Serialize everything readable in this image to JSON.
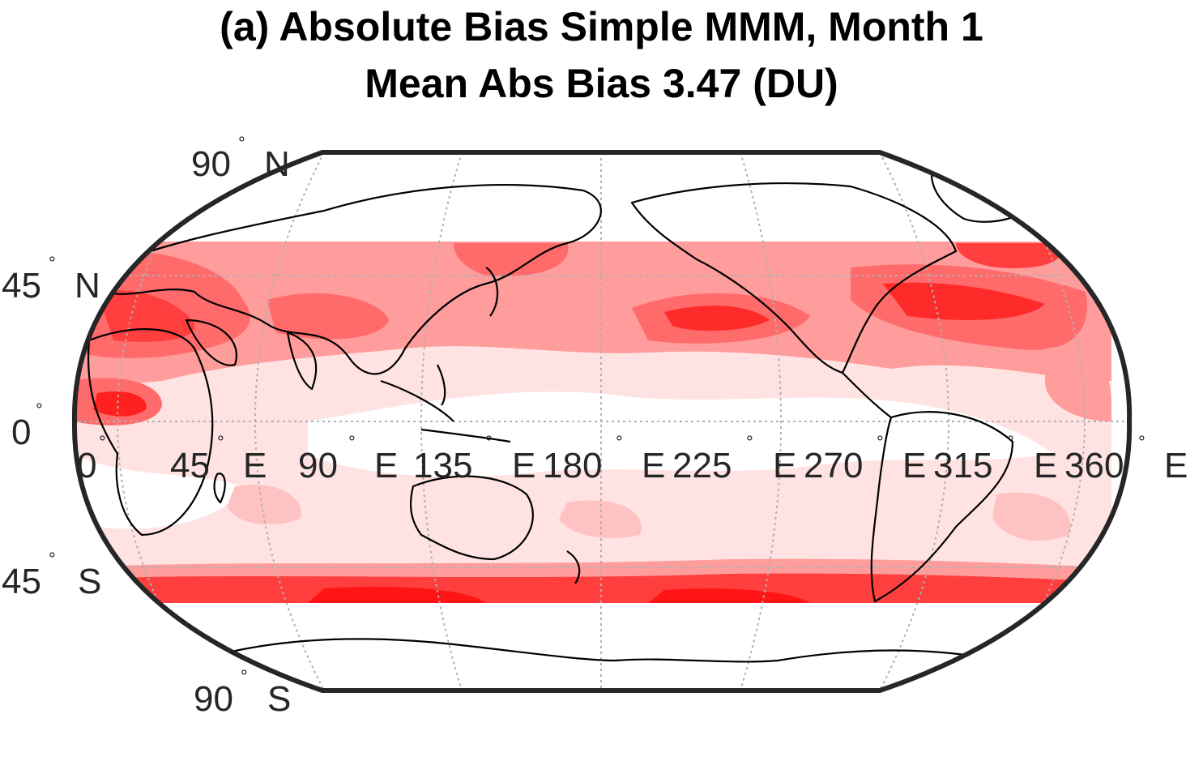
{
  "title": {
    "line1": "(a) Absolute Bias Simple MMM, Month 1",
    "line2": "Mean Abs Bias 3.47 (DU)"
  },
  "map": {
    "projection": "Robinson",
    "field": "Absolute bias (DU)",
    "data_lat_range": [
      -50,
      50
    ],
    "colormap": [
      "#ffffff",
      "#ffe5e5",
      "#ffc2c2",
      "#ff9a9a",
      "#ff6e6e",
      "#ff3b3b",
      "#ff0000"
    ],
    "frame_color": "#262626",
    "coastline_color": "#000000",
    "graticule_color": "#b0b0b0"
  },
  "lat_labels": [
    {
      "value": "90",
      "deg": "°",
      "hemi": "N"
    },
    {
      "value": "45",
      "deg": "°",
      "hemi": "N"
    },
    {
      "value": "0",
      "deg": "°",
      "hemi": ""
    },
    {
      "value": "45",
      "deg": "°",
      "hemi": "S"
    },
    {
      "value": "90",
      "deg": "°",
      "hemi": "S"
    }
  ],
  "lon_labels": [
    {
      "value": "0",
      "deg": "°",
      "hemi": ""
    },
    {
      "value": "45",
      "deg": "°",
      "hemi": "E"
    },
    {
      "value": "90",
      "deg": "°",
      "hemi": "E"
    },
    {
      "value": "135",
      "deg": "°",
      "hemi": "E"
    },
    {
      "value": "180",
      "deg": "°",
      "hemi": "E"
    },
    {
      "value": "225",
      "deg": "°",
      "hemi": "E"
    },
    {
      "value": "270",
      "deg": "°",
      "hemi": "E"
    },
    {
      "value": "315",
      "deg": "°",
      "hemi": "E"
    },
    {
      "value": "360",
      "deg": "°",
      "hemi": "E"
    }
  ]
}
